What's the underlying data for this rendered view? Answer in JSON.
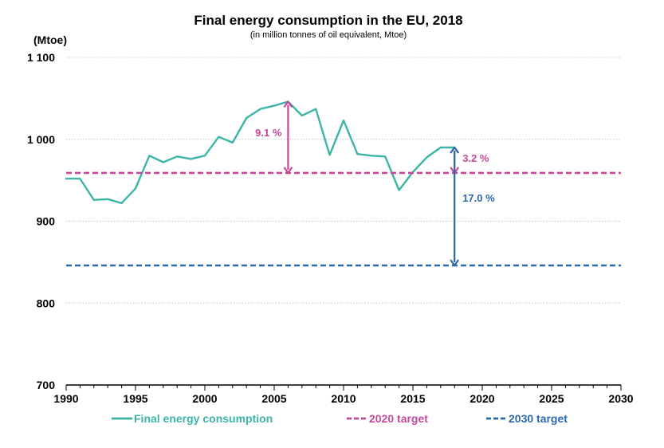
{
  "colors": {
    "consumption": "#3bb5a6",
    "target_2020": "#c8479a",
    "target_2030": "#2b6aad",
    "grid": "#c8c8c8",
    "axis": "#000000"
  },
  "chart_data": {
    "type": "line",
    "title": "Final energy consumption in the EU, 2018",
    "subtitle": "(in million tonnes of oil equivalent, Mtoe)",
    "ylabel": "(Mtoe)",
    "xlabel": "",
    "xlim": [
      1990,
      2030
    ],
    "ylim": [
      700,
      1100
    ],
    "grid": true,
    "legend_position": "bottom",
    "x_ticks": [
      1990,
      1995,
      2000,
      2005,
      2010,
      2015,
      2020,
      2025,
      2030
    ],
    "x_tick_labels": [
      "1990",
      "1995",
      "2000",
      "2005",
      "2010",
      "2015",
      "2020",
      "2025",
      "2030"
    ],
    "y_ticks": [
      700,
      800,
      900,
      1000,
      1100
    ],
    "y_tick_labels": [
      "700",
      "800",
      "900",
      "1 000",
      "1 100"
    ],
    "series": [
      {
        "name": "Final energy consumption",
        "style": "solid",
        "x": [
          1990,
          1991,
          1992,
          1993,
          1994,
          1995,
          1996,
          1997,
          1998,
          1999,
          2000,
          2001,
          2002,
          2003,
          2004,
          2005,
          2006,
          2007,
          2008,
          2009,
          2010,
          2011,
          2012,
          2013,
          2014,
          2015,
          2016,
          2017,
          2018
        ],
        "y": [
          952,
          952,
          926,
          927,
          922,
          940,
          980,
          972,
          979,
          976,
          980,
          1003,
          996,
          1026,
          1037,
          1041,
          1046,
          1029,
          1037,
          981,
          1023,
          982,
          980,
          979,
          938,
          960,
          978,
          990,
          990
        ]
      },
      {
        "name": "2020 target",
        "style": "dashed",
        "x": [
          1990,
          2030
        ],
        "y": [
          959,
          959
        ]
      },
      {
        "name": "2030 target",
        "style": "dashed",
        "x": [
          1990,
          2030
        ],
        "y": [
          846,
          846
        ]
      }
    ],
    "annotations": [
      {
        "text": "9.1 %",
        "x": 2006,
        "y_from": 1046,
        "y_to": 959,
        "series": "2020 target"
      },
      {
        "text": "3.2 %",
        "x": 2018,
        "y_from": 990,
        "y_to": 959,
        "series": "2020 target"
      },
      {
        "text": "17.0 %",
        "x": 2018,
        "y_from": 990,
        "y_to": 846,
        "series": "2030 target"
      }
    ]
  }
}
